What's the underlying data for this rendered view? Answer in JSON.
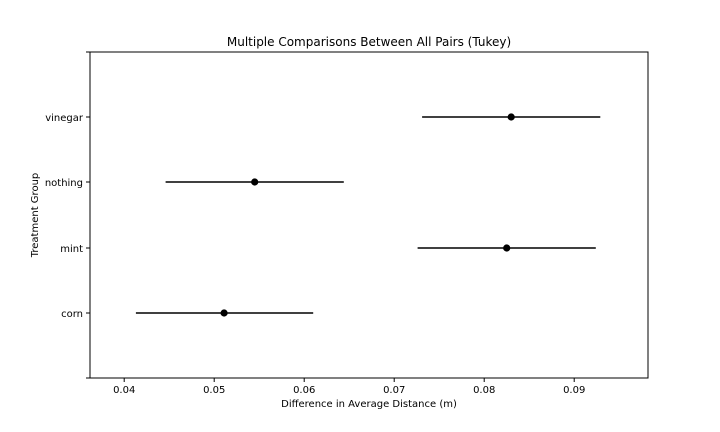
{
  "chart_data": {
    "type": "errorbar",
    "title": "Multiple Comparisons Between All Pairs (Tukey)",
    "xlabel": "Difference in Average Distance (m)",
    "ylabel": "Treatment Group",
    "xlim": [
      0.0362,
      0.0982
    ],
    "x_ticks": [
      "0.04",
      "0.05",
      "0.06",
      "0.07",
      "0.08",
      "0.09"
    ],
    "x_tick_values": [
      0.04,
      0.05,
      0.06,
      0.07,
      0.08,
      0.09
    ],
    "categories": [
      "corn",
      "mint",
      "nothing",
      "vinegar"
    ],
    "points": [
      {
        "group": "corn",
        "mean": 0.0511,
        "low": 0.0413,
        "high": 0.061
      },
      {
        "group": "mint",
        "mean": 0.0825,
        "low": 0.0726,
        "high": 0.0924
      },
      {
        "group": "nothing",
        "mean": 0.0545,
        "low": 0.0446,
        "high": 0.0644
      },
      {
        "group": "vinegar",
        "mean": 0.083,
        "low": 0.0731,
        "high": 0.0929
      }
    ],
    "grid": false,
    "legend": false,
    "marker_color": "#000000",
    "line_color": "#000000"
  }
}
